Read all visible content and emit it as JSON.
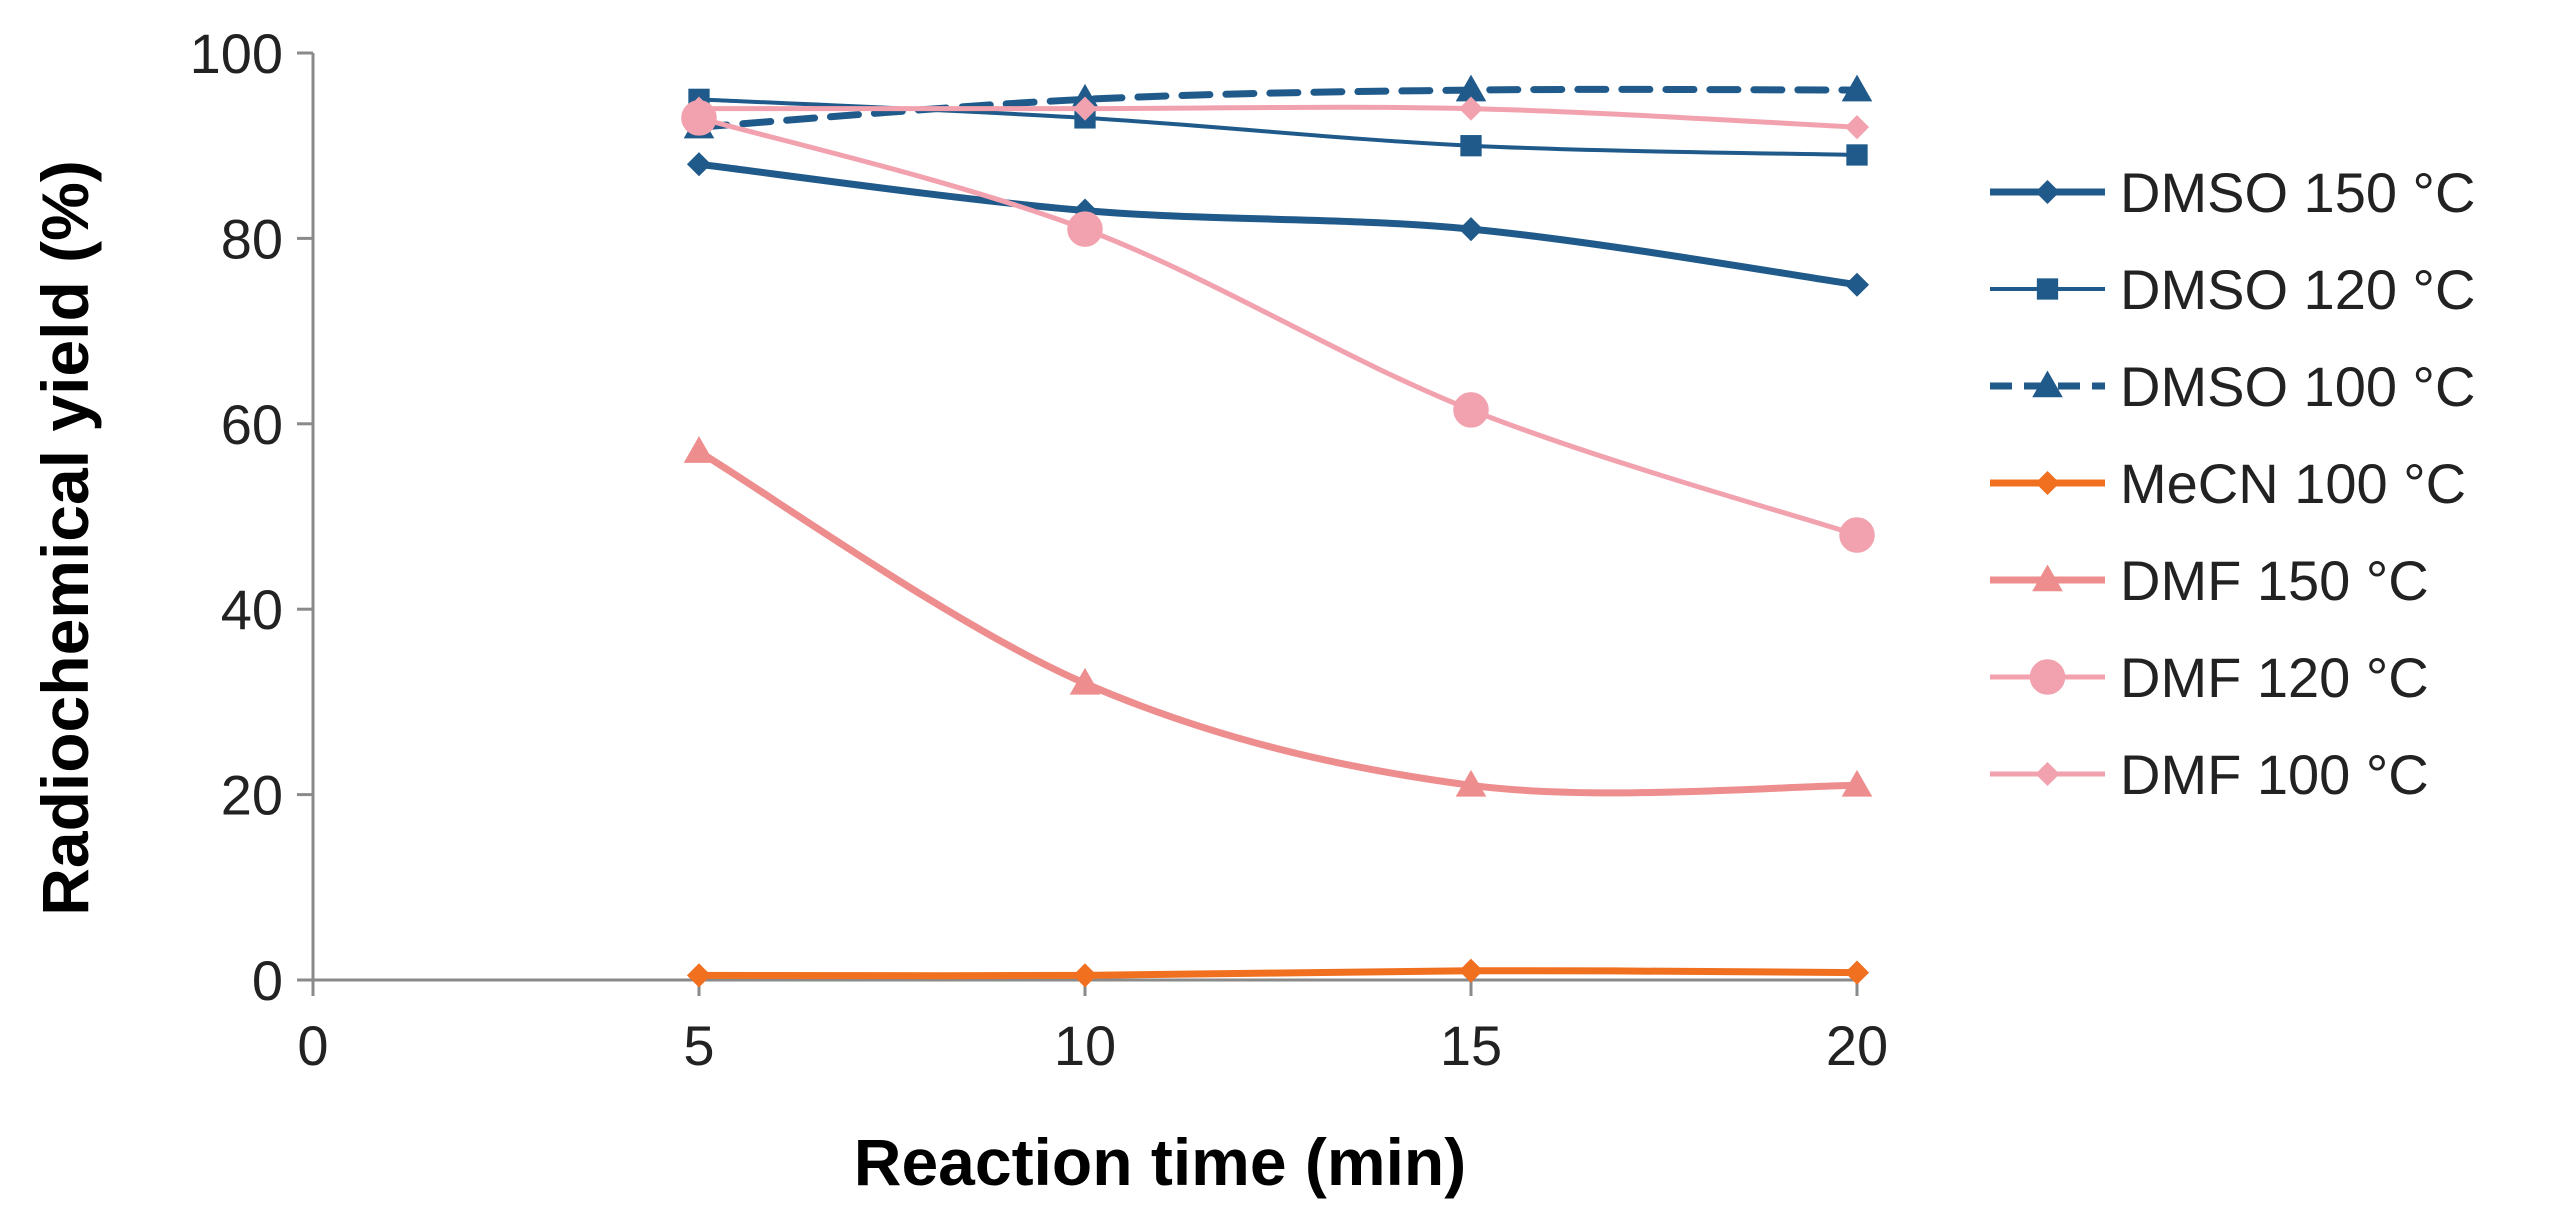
{
  "chart_data": {
    "type": "line",
    "title": "",
    "xlabel": "Reaction time (min)",
    "ylabel": "Radiochemical yield (%)",
    "xlim": [
      0,
      20
    ],
    "ylim": [
      0,
      100
    ],
    "xticks": [
      0,
      5,
      10,
      15,
      20
    ],
    "yticks": [
      0,
      20,
      40,
      60,
      80,
      100
    ],
    "xtick_labels": [
      "0",
      "5",
      "10",
      "15",
      "20"
    ],
    "ytick_labels": [
      "0",
      "20",
      "40",
      "60",
      "80",
      "100"
    ],
    "x": [
      5,
      10,
      15,
      20
    ],
    "legend_position": "right",
    "grid": false,
    "series": [
      {
        "name": "DMSO 150 °C",
        "values": [
          88,
          83,
          81,
          75
        ],
        "color": "#1F5A8A",
        "marker": "diamond",
        "dashed": false,
        "line_weight": "thick"
      },
      {
        "name": "DMSO 120 °C",
        "values": [
          95,
          93,
          90,
          89
        ],
        "color": "#1F5A8A",
        "marker": "square",
        "dashed": false,
        "line_weight": "thin"
      },
      {
        "name": "DMSO 100 °C",
        "values": [
          92,
          95,
          96,
          96
        ],
        "color": "#1F5A8A",
        "marker": "triangle",
        "dashed": true,
        "line_weight": "thick"
      },
      {
        "name": "MeCN 100 °C",
        "values": [
          0.5,
          0.5,
          1,
          0.8
        ],
        "color": "#F07020",
        "marker": "diamond",
        "dashed": false,
        "line_weight": "thick"
      },
      {
        "name": "DMF 150 °C",
        "values": [
          57,
          32,
          21,
          21
        ],
        "color": "#EE8D8D",
        "marker": "triangle",
        "dashed": false,
        "line_weight": "thick"
      },
      {
        "name": "DMF 120 °C",
        "values": [
          93,
          81,
          61.5,
          48
        ],
        "color": "#F2A2AE",
        "marker": "circle",
        "dashed": false,
        "line_weight": "medium"
      },
      {
        "name": "DMF 100 °C",
        "values": [
          94,
          94,
          94,
          92
        ],
        "color": "#F2A2AE",
        "marker": "diamond",
        "dashed": false,
        "line_weight": "medium"
      }
    ]
  }
}
